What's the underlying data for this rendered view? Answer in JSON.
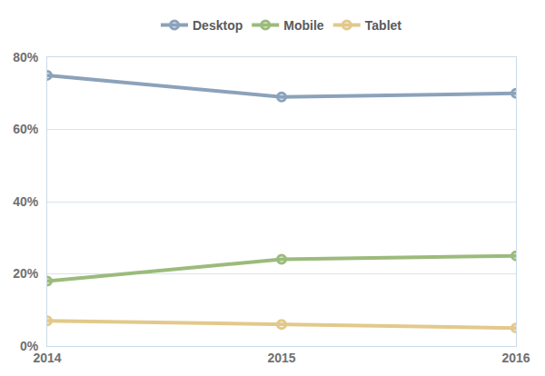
{
  "chart_data": {
    "type": "line",
    "x": [
      2014,
      2015,
      2016
    ],
    "series": [
      {
        "name": "Desktop",
        "color": "#8ba2ba",
        "values": [
          75,
          69,
          70
        ]
      },
      {
        "name": "Mobile",
        "color": "#9bbb7c",
        "values": [
          18,
          24,
          25
        ]
      },
      {
        "name": "Tablet",
        "color": "#e2c98b",
        "values": [
          7,
          6,
          5
        ]
      }
    ],
    "xlim": [
      2014,
      2016
    ],
    "xticks": [
      2014,
      2015,
      2016
    ],
    "ylim": [
      0,
      80
    ],
    "yticks": [
      {
        "value": 0,
        "label": "0%"
      },
      {
        "value": 20,
        "label": "20%"
      },
      {
        "value": 40,
        "label": "40%"
      },
      {
        "value": 60,
        "label": "60%"
      },
      {
        "value": 80,
        "label": "80%"
      }
    ],
    "grid": true,
    "legend": "top",
    "marker": "circle-open",
    "line_style": "solid"
  }
}
